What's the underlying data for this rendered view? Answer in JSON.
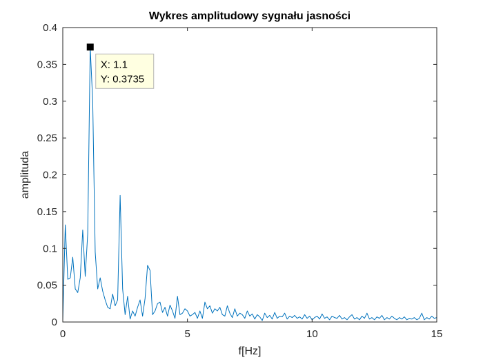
{
  "chart_data": {
    "type": "line",
    "title": "Wykres amplitudowy sygnału jasności",
    "xlabel": "f[Hz]",
    "ylabel": "amplituda",
    "xlim": [
      0,
      15
    ],
    "ylim": [
      0,
      0.4
    ],
    "xticks": [
      0,
      5,
      10,
      15
    ],
    "xtick_labels": [
      "0",
      "5",
      "10",
      "15"
    ],
    "yticks": [
      0,
      0.05,
      0.1,
      0.15,
      0.2,
      0.25,
      0.3,
      0.35,
      0.4
    ],
    "ytick_labels": [
      "0",
      "0.05",
      "0.1",
      "0.15",
      "0.2",
      "0.25",
      "0.3",
      "0.35",
      "0.4"
    ],
    "grid": false,
    "line_color": "#0072BD",
    "series": [
      {
        "x": [
          0,
          0.1,
          0.2,
          0.3,
          0.4,
          0.5,
          0.6,
          0.7,
          0.8,
          0.9,
          1.0,
          1.1,
          1.2,
          1.3,
          1.4,
          1.5,
          1.6,
          1.7,
          1.8,
          1.9,
          2.0,
          2.1,
          2.2,
          2.3,
          2.4,
          2.5,
          2.6,
          2.7,
          2.8,
          2.9,
          3.0,
          3.1,
          3.2,
          3.3,
          3.4,
          3.5,
          3.6,
          3.7,
          3.8,
          3.9,
          4.0,
          4.1,
          4.2,
          4.3,
          4.4,
          4.5,
          4.6,
          4.7,
          4.8,
          4.9,
          5.0,
          5.1,
          5.2,
          5.3,
          5.4,
          5.5,
          5.6,
          5.7,
          5.8,
          5.9,
          6.0,
          6.1,
          6.2,
          6.3,
          6.4,
          6.5,
          6.6,
          6.7,
          6.8,
          6.9,
          7.0,
          7.1,
          7.2,
          7.3,
          7.4,
          7.5,
          7.6,
          7.7,
          7.8,
          7.9,
          8.0,
          8.1,
          8.2,
          8.3,
          8.4,
          8.5,
          8.6,
          8.7,
          8.8,
          8.9,
          9.0,
          9.1,
          9.2,
          9.3,
          9.4,
          9.5,
          9.6,
          9.7,
          9.8,
          9.9,
          10.0,
          10.1,
          10.2,
          10.3,
          10.4,
          10.5,
          10.6,
          10.7,
          10.8,
          10.9,
          11.0,
          11.1,
          11.2,
          11.3,
          11.4,
          11.5,
          11.6,
          11.7,
          11.8,
          11.9,
          12.0,
          12.1,
          12.2,
          12.3,
          12.4,
          12.5,
          12.6,
          12.7,
          12.8,
          12.9,
          13.0,
          13.1,
          13.2,
          13.3,
          13.4,
          13.5,
          13.6,
          13.7,
          13.8,
          13.9,
          14.0,
          14.1,
          14.2,
          14.3,
          14.4,
          14.5,
          14.6,
          14.7,
          14.8,
          14.9,
          15.0
        ],
        "y": [
          0.002,
          0.132,
          0.058,
          0.06,
          0.088,
          0.045,
          0.04,
          0.06,
          0.125,
          0.062,
          0.12,
          0.3735,
          0.3,
          0.095,
          0.045,
          0.06,
          0.042,
          0.03,
          0.02,
          0.018,
          0.038,
          0.022,
          0.03,
          0.172,
          0.045,
          0.01,
          0.035,
          0.004,
          0.015,
          0.008,
          0.02,
          0.03,
          0.008,
          0.032,
          0.077,
          0.07,
          0.01,
          0.015,
          0.025,
          0.027,
          0.013,
          0.02,
          0.008,
          0.023,
          0.015,
          0.005,
          0.035,
          0.01,
          0.012,
          0.018,
          0.015,
          0.008,
          0.01,
          0.013,
          0.005,
          0.015,
          0.005,
          0.027,
          0.018,
          0.022,
          0.012,
          0.018,
          0.015,
          0.02,
          0.01,
          0.008,
          0.022,
          0.012,
          0.006,
          0.018,
          0.008,
          0.012,
          0.01,
          0.005,
          0.015,
          0.008,
          0.011,
          0.004,
          0.01,
          0.007,
          0.002,
          0.012,
          0.006,
          0.009,
          0.004,
          0.013,
          0.005,
          0.008,
          0.007,
          0.012,
          0.004,
          0.008,
          0.006,
          0.009,
          0.005,
          0.007,
          0.004,
          0.01,
          0.005,
          0.008,
          0.003,
          0.006,
          0.008,
          0.004,
          0.011,
          0.005,
          0.007,
          0.003,
          0.008,
          0.006,
          0.005,
          0.009,
          0.004,
          0.006,
          0.003,
          0.007,
          0.01,
          0.004,
          0.006,
          0.003,
          0.008,
          0.005,
          0.012,
          0.004,
          0.006,
          0.003,
          0.007,
          0.005,
          0.009,
          0.003,
          0.006,
          0.004,
          0.008,
          0.005,
          0.003,
          0.006,
          0.004,
          0.007,
          0.003,
          0.005,
          0.004,
          0.006,
          0.003,
          0.005,
          0.012,
          0.003,
          0.006,
          0.004,
          0.008,
          0.005,
          0.006
        ]
      }
    ],
    "datatip": {
      "x": 1.1,
      "y": 0.3735,
      "x_text": "X: 1.1",
      "y_text": "Y: 0.3735"
    }
  }
}
